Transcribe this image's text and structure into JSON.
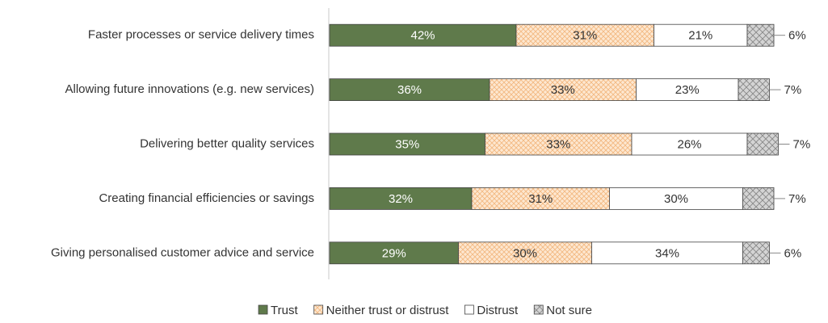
{
  "chart_data": {
    "type": "stacked-barh",
    "categories": [
      "Faster processes or service delivery times",
      "Allowing future innovations (e.g. new services)",
      "Delivering better quality services",
      "Creating financial efficiencies or savings",
      "Giving personalised customer advice and service"
    ],
    "series": [
      {
        "name": "Trust",
        "color": "#5f7a4b",
        "values": [
          42,
          36,
          35,
          32,
          29
        ],
        "value_labels": [
          "42%",
          "36%",
          "35%",
          "32%",
          "29%"
        ]
      },
      {
        "name": "Neither trust or distrust",
        "color": "#fbe1c6",
        "values": [
          31,
          33,
          33,
          31,
          30
        ],
        "value_labels": [
          "31%",
          "33%",
          "33%",
          "31%",
          "30%"
        ]
      },
      {
        "name": "Distrust",
        "color": "#ffffff",
        "values": [
          21,
          23,
          26,
          30,
          34
        ],
        "value_labels": [
          "21%",
          "23%",
          "26%",
          "30%",
          "34%"
        ]
      },
      {
        "name": "Not sure",
        "color": "#cfcfcf",
        "values": [
          6,
          7,
          7,
          7,
          6
        ],
        "value_labels": [
          "6%",
          "7%",
          "7%",
          "7%",
          "6%"
        ]
      }
    ],
    "legend": "bottom"
  }
}
